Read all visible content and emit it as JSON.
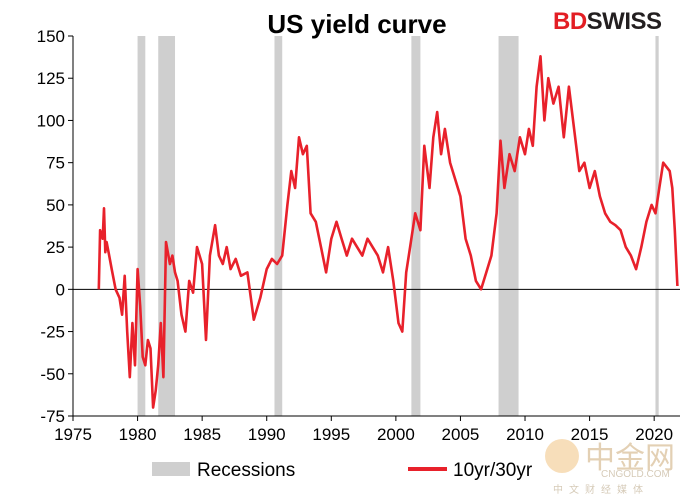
{
  "brand": {
    "left": "BD",
    "right": "SWISS"
  },
  "watermark": {
    "chinese": "中金网",
    "url": "CNGOLD.COM",
    "subtitle": "中文财经媒体"
  },
  "colors": {
    "line": "#e8212b",
    "recession": "#cfcfcf",
    "brand_red": "#e31e24"
  },
  "chart_data": {
    "type": "line",
    "title": "US yield curve",
    "xlabel": "",
    "ylabel": "",
    "xlim": [
      1975,
      2022
    ],
    "ylim": [
      -75,
      150
    ],
    "x_ticks": [
      1975,
      1980,
      1985,
      1990,
      1995,
      2000,
      2005,
      2010,
      2015,
      2020
    ],
    "y_ticks": [
      -75,
      -50,
      -25,
      0,
      25,
      50,
      75,
      100,
      125,
      150
    ],
    "grid": false,
    "legend": {
      "position": "bottom",
      "entries": [
        "Recessions",
        "10yr/30yr"
      ]
    },
    "recessions": [
      [
        1980.0,
        1980.6
      ],
      [
        1981.6,
        1982.9
      ],
      [
        1990.6,
        1991.2
      ],
      [
        2001.2,
        2001.9
      ],
      [
        2007.95,
        2009.5
      ],
      [
        2020.1,
        2020.35
      ]
    ],
    "series": [
      {
        "name": "10yr/30yr",
        "x": [
          1977.0,
          1977.1,
          1977.3,
          1977.4,
          1977.5,
          1977.6,
          1977.8,
          1978.0,
          1978.3,
          1978.6,
          1978.8,
          1979.0,
          1979.2,
          1979.4,
          1979.6,
          1979.8,
          1980.0,
          1980.2,
          1980.4,
          1980.6,
          1980.8,
          1981.0,
          1981.2,
          1981.4,
          1981.6,
          1981.8,
          1982.0,
          1982.2,
          1982.5,
          1982.7,
          1982.9,
          1983.1,
          1983.4,
          1983.7,
          1984.0,
          1984.3,
          1984.6,
          1985.0,
          1985.3,
          1985.6,
          1986.0,
          1986.3,
          1986.6,
          1986.9,
          1987.2,
          1987.6,
          1988.0,
          1988.5,
          1989.0,
          1989.5,
          1990.0,
          1990.4,
          1990.8,
          1991.2,
          1991.6,
          1991.9,
          1992.2,
          1992.5,
          1992.8,
          1993.1,
          1993.4,
          1993.8,
          1994.2,
          1994.6,
          1995.0,
          1995.4,
          1995.8,
          1996.2,
          1996.6,
          1997.0,
          1997.4,
          1997.8,
          1998.2,
          1998.6,
          1999.0,
          1999.4,
          1999.8,
          2000.2,
          2000.5,
          2000.8,
          2001.1,
          2001.5,
          2001.9,
          2002.2,
          2002.6,
          2002.9,
          2003.2,
          2003.5,
          2003.8,
          2004.2,
          2004.6,
          2005.0,
          2005.4,
          2005.8,
          2006.2,
          2006.6,
          2007.0,
          2007.4,
          2007.8,
          2008.1,
          2008.4,
          2008.8,
          2009.2,
          2009.6,
          2010.0,
          2010.3,
          2010.6,
          2010.9,
          2011.2,
          2011.5,
          2011.8,
          2012.2,
          2012.6,
          2013.0,
          2013.4,
          2013.8,
          2014.2,
          2014.6,
          2015.0,
          2015.4,
          2015.8,
          2016.2,
          2016.6,
          2017.0,
          2017.4,
          2017.8,
          2018.2,
          2018.6,
          2019.0,
          2019.4,
          2019.8,
          2020.1,
          2020.4,
          2020.7,
          2021.0,
          2021.2,
          2021.4,
          2021.6,
          2021.8
        ],
        "values": [
          0,
          35,
          30,
          48,
          22,
          28,
          20,
          12,
          0,
          -5,
          -15,
          8,
          -25,
          -52,
          -20,
          -45,
          12,
          -10,
          -40,
          -45,
          -30,
          -35,
          -70,
          -60,
          -45,
          -20,
          -52,
          28,
          15,
          20,
          10,
          5,
          -15,
          -25,
          5,
          -2,
          25,
          15,
          -30,
          20,
          38,
          20,
          15,
          25,
          12,
          18,
          8,
          10,
          -18,
          -5,
          12,
          18,
          15,
          20,
          50,
          70,
          60,
          90,
          80,
          85,
          45,
          40,
          25,
          10,
          30,
          40,
          30,
          20,
          30,
          25,
          20,
          30,
          25,
          20,
          10,
          25,
          5,
          -20,
          -25,
          10,
          25,
          45,
          35,
          85,
          60,
          90,
          105,
          80,
          95,
          75,
          65,
          55,
          30,
          20,
          5,
          0,
          10,
          20,
          45,
          88,
          60,
          80,
          70,
          90,
          80,
          95,
          85,
          120,
          138,
          100,
          125,
          110,
          120,
          90,
          120,
          95,
          70,
          75,
          60,
          70,
          55,
          45,
          40,
          38,
          35,
          25,
          20,
          12,
          25,
          40,
          50,
          45,
          60,
          75,
          72,
          70,
          60,
          35,
          2
        ]
      }
    ]
  }
}
